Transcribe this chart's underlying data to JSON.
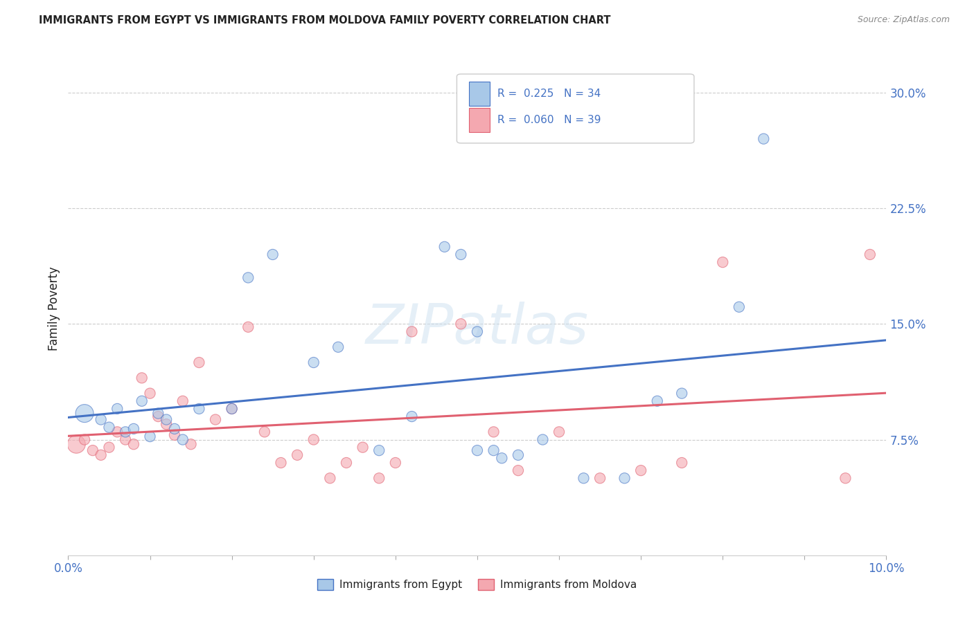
{
  "title": "IMMIGRANTS FROM EGYPT VS IMMIGRANTS FROM MOLDOVA FAMILY POVERTY CORRELATION CHART",
  "source": "Source: ZipAtlas.com",
  "ylabel": "Family Poverty",
  "legend_label1": "Immigrants from Egypt",
  "legend_label2": "Immigrants from Moldova",
  "R1": 0.225,
  "N1": 34,
  "R2": 0.06,
  "N2": 39,
  "xlim": [
    0.0,
    0.1
  ],
  "ylim": [
    0.0,
    0.32
  ],
  "ytick_values": [
    0.075,
    0.15,
    0.225,
    0.3
  ],
  "ytick_labels": [
    "7.5%",
    "15.0%",
    "22.5%",
    "30.0%"
  ],
  "color_egypt": "#a8c8e8",
  "color_moldova": "#f4a8b0",
  "color_line_egypt": "#4472c4",
  "color_line_moldova": "#e06070",
  "color_text_blue": "#4472c4",
  "color_text_dark": "#222222",
  "background": "#ffffff",
  "watermark": "ZIPatlas",
  "egypt_x": [
    0.002,
    0.004,
    0.005,
    0.006,
    0.007,
    0.008,
    0.009,
    0.01,
    0.011,
    0.012,
    0.013,
    0.014,
    0.016,
    0.02,
    0.022,
    0.025,
    0.03,
    0.033,
    0.038,
    0.042,
    0.046,
    0.048,
    0.05,
    0.052,
    0.055,
    0.058,
    0.063,
    0.068,
    0.072,
    0.075,
    0.05,
    0.053,
    0.082,
    0.085
  ],
  "egypt_y": [
    0.092,
    0.088,
    0.083,
    0.095,
    0.08,
    0.082,
    0.1,
    0.077,
    0.092,
    0.088,
    0.082,
    0.075,
    0.095,
    0.095,
    0.18,
    0.195,
    0.125,
    0.135,
    0.068,
    0.09,
    0.2,
    0.195,
    0.145,
    0.068,
    0.065,
    0.075,
    0.05,
    0.05,
    0.1,
    0.105,
    0.068,
    0.063,
    0.161,
    0.27
  ],
  "egypt_sizes": [
    350,
    120,
    120,
    120,
    120,
    120,
    120,
    120,
    120,
    120,
    120,
    120,
    120,
    120,
    120,
    120,
    120,
    120,
    120,
    120,
    120,
    120,
    120,
    120,
    120,
    120,
    120,
    120,
    120,
    120,
    120,
    120,
    120,
    120
  ],
  "moldova_x": [
    0.001,
    0.002,
    0.003,
    0.004,
    0.005,
    0.006,
    0.007,
    0.008,
    0.009,
    0.01,
    0.011,
    0.012,
    0.013,
    0.014,
    0.015,
    0.016,
    0.018,
    0.02,
    0.022,
    0.024,
    0.026,
    0.028,
    0.03,
    0.032,
    0.034,
    0.036,
    0.038,
    0.04,
    0.042,
    0.048,
    0.052,
    0.055,
    0.06,
    0.065,
    0.07,
    0.075,
    0.08,
    0.095,
    0.098
  ],
  "moldova_y": [
    0.072,
    0.075,
    0.068,
    0.065,
    0.07,
    0.08,
    0.075,
    0.072,
    0.115,
    0.105,
    0.09,
    0.085,
    0.078,
    0.1,
    0.072,
    0.125,
    0.088,
    0.095,
    0.148,
    0.08,
    0.06,
    0.065,
    0.075,
    0.05,
    0.06,
    0.07,
    0.05,
    0.06,
    0.145,
    0.15,
    0.08,
    0.055,
    0.08,
    0.05,
    0.055,
    0.06,
    0.19,
    0.05,
    0.195
  ],
  "moldova_sizes": [
    350,
    120,
    120,
    120,
    120,
    120,
    120,
    120,
    120,
    120,
    120,
    120,
    120,
    120,
    120,
    120,
    120,
    120,
    120,
    120,
    120,
    120,
    120,
    120,
    120,
    120,
    120,
    120,
    120,
    120,
    120,
    120,
    120,
    120,
    120,
    120,
    120,
    120,
    120
  ]
}
